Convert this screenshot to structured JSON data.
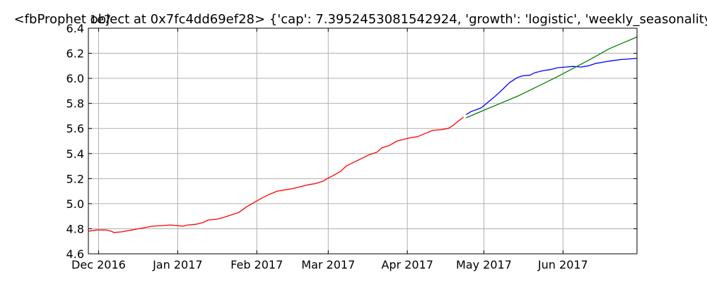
{
  "chart_data": {
    "type": "line",
    "title": "<fbProphet object at 0x7fc4dd69ef28> {'cap': 7.3952453081542924, 'growth': 'logistic', 'weekly_seasonality': ...",
    "offset_label": "1e7",
    "xlabel": "",
    "ylabel": "",
    "xlim": [
      "2016-11-27",
      "2017-06-30"
    ],
    "ylim": [
      4.6,
      6.4
    ],
    "x_ticks": [
      {
        "date": "2016-12-01",
        "label": "Dec 2016"
      },
      {
        "date": "2017-01-01",
        "label": "Jan 2017"
      },
      {
        "date": "2017-02-01",
        "label": "Feb 2017"
      },
      {
        "date": "2017-03-01",
        "label": "Mar 2017"
      },
      {
        "date": "2017-04-01",
        "label": "Apr 2017"
      },
      {
        "date": "2017-05-01",
        "label": "May 2017"
      },
      {
        "date": "2017-06-01",
        "label": "Jun 2017"
      }
    ],
    "y_ticks": [
      "4.6",
      "4.8",
      "5.0",
      "5.2",
      "5.4",
      "5.6",
      "5.8",
      "6.0",
      "6.2",
      "6.4"
    ],
    "grid": true,
    "series": [
      {
        "color": "#ff0000",
        "points": [
          [
            "2016-11-27",
            4.78
          ],
          [
            "2016-11-30",
            4.79
          ],
          [
            "2016-12-04",
            4.79
          ],
          [
            "2016-12-06",
            4.78
          ],
          [
            "2016-12-07",
            4.77
          ],
          [
            "2016-12-10",
            4.775
          ],
          [
            "2016-12-14",
            4.79
          ],
          [
            "2016-12-18",
            4.805
          ],
          [
            "2016-12-22",
            4.82
          ],
          [
            "2016-12-26",
            4.825
          ],
          [
            "2016-12-29",
            4.83
          ],
          [
            "2017-01-01",
            4.825
          ],
          [
            "2017-01-03",
            4.82
          ],
          [
            "2017-01-05",
            4.83
          ],
          [
            "2017-01-08",
            4.835
          ],
          [
            "2017-01-11",
            4.85
          ],
          [
            "2017-01-13",
            4.87
          ],
          [
            "2017-01-16",
            4.875
          ],
          [
            "2017-01-19",
            4.89
          ],
          [
            "2017-01-22",
            4.91
          ],
          [
            "2017-01-25",
            4.93
          ],
          [
            "2017-01-28",
            4.975
          ],
          [
            "2017-01-31",
            5.01
          ],
          [
            "2017-02-03",
            5.045
          ],
          [
            "2017-02-06",
            5.075
          ],
          [
            "2017-02-09",
            5.1
          ],
          [
            "2017-02-12",
            5.11
          ],
          [
            "2017-02-15",
            5.12
          ],
          [
            "2017-02-18",
            5.135
          ],
          [
            "2017-02-21",
            5.15
          ],
          [
            "2017-02-24",
            5.16
          ],
          [
            "2017-02-27",
            5.18
          ],
          [
            "2017-03-01",
            5.205
          ],
          [
            "2017-03-03",
            5.225
          ],
          [
            "2017-03-06",
            5.26
          ],
          [
            "2017-03-08",
            5.3
          ],
          [
            "2017-03-11",
            5.33
          ],
          [
            "2017-03-14",
            5.36
          ],
          [
            "2017-03-17",
            5.39
          ],
          [
            "2017-03-20",
            5.41
          ],
          [
            "2017-03-22",
            5.445
          ],
          [
            "2017-03-25",
            5.465
          ],
          [
            "2017-03-28",
            5.5
          ],
          [
            "2017-03-31",
            5.515
          ],
          [
            "2017-04-02",
            5.525
          ],
          [
            "2017-04-05",
            5.535
          ],
          [
            "2017-04-08",
            5.56
          ],
          [
            "2017-04-11",
            5.585
          ],
          [
            "2017-04-14",
            5.59
          ],
          [
            "2017-04-17",
            5.6
          ],
          [
            "2017-04-19",
            5.625
          ],
          [
            "2017-04-21",
            5.66
          ],
          [
            "2017-04-23",
            5.69
          ]
        ]
      },
      {
        "color": "#0000ff",
        "points": [
          [
            "2017-04-24",
            5.71
          ],
          [
            "2017-04-26",
            5.735
          ],
          [
            "2017-04-28",
            5.75
          ],
          [
            "2017-04-30",
            5.765
          ],
          [
            "2017-05-02",
            5.8
          ],
          [
            "2017-05-05",
            5.85
          ],
          [
            "2017-05-08",
            5.905
          ],
          [
            "2017-05-11",
            5.965
          ],
          [
            "2017-05-14",
            6.005
          ],
          [
            "2017-05-16",
            6.02
          ],
          [
            "2017-05-19",
            6.025
          ],
          [
            "2017-05-21",
            6.045
          ],
          [
            "2017-05-24",
            6.06
          ],
          [
            "2017-05-27",
            6.07
          ],
          [
            "2017-05-30",
            6.085
          ],
          [
            "2017-06-02",
            6.09
          ],
          [
            "2017-06-05",
            6.095
          ],
          [
            "2017-06-08",
            6.09
          ],
          [
            "2017-06-11",
            6.1
          ],
          [
            "2017-06-14",
            6.12
          ],
          [
            "2017-06-17",
            6.13
          ],
          [
            "2017-06-20",
            6.14
          ],
          [
            "2017-06-24",
            6.15
          ],
          [
            "2017-06-27",
            6.155
          ],
          [
            "2017-06-30",
            6.16
          ]
        ]
      },
      {
        "color": "#008000",
        "points": [
          [
            "2017-04-24",
            5.685
          ],
          [
            "2017-05-01",
            5.745
          ],
          [
            "2017-05-08",
            5.805
          ],
          [
            "2017-05-15",
            5.865
          ],
          [
            "2017-05-22",
            5.935
          ],
          [
            "2017-05-29",
            6.005
          ],
          [
            "2017-06-05",
            6.08
          ],
          [
            "2017-06-12",
            6.155
          ],
          [
            "2017-06-19",
            6.235
          ],
          [
            "2017-06-30",
            6.33
          ]
        ]
      }
    ]
  }
}
